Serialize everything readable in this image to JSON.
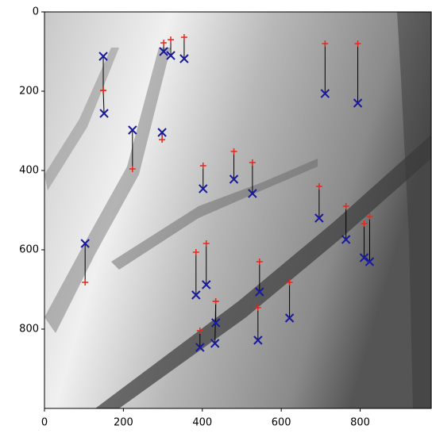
{
  "chart_data": {
    "type": "scatter",
    "xlim": [
      0,
      980
    ],
    "ylim": [
      1000,
      0
    ],
    "xticks": [
      0,
      200,
      400,
      600,
      800
    ],
    "yticks": [
      0,
      200,
      400,
      600,
      800
    ],
    "series": [
      {
        "color": "#e8261c",
        "marker": "+",
        "x": [
          149,
          149,
          223,
          298,
          302,
          320,
          354,
          402,
          480,
          527,
          711,
          794,
          696,
          764,
          810,
          824,
          103,
          384,
          410,
          545,
          621,
          434,
          434,
          394,
          541
        ],
        "y": [
          198,
          198,
          396,
          322,
          78,
          70,
          64,
          388,
          352,
          380,
          80,
          80,
          440,
          490,
          534,
          516,
          682,
          606,
          584,
          630,
          682,
          730,
          730,
          804,
          746
        ]
      },
      {
        "color": "#1a1a9e",
        "marker": "x",
        "x": [
          149,
          151,
          223,
          298,
          302,
          320,
          354,
          402,
          480,
          527,
          711,
          794,
          696,
          764,
          810,
          824,
          103,
          384,
          410,
          545,
          621,
          434,
          432,
          394,
          541
        ],
        "y": [
          112,
          256,
          298,
          304,
          100,
          110,
          118,
          446,
          422,
          458,
          206,
          230,
          520,
          574,
          620,
          630,
          584,
          714,
          688,
          706,
          772,
          784,
          836,
          846,
          828
        ]
      }
    ]
  }
}
